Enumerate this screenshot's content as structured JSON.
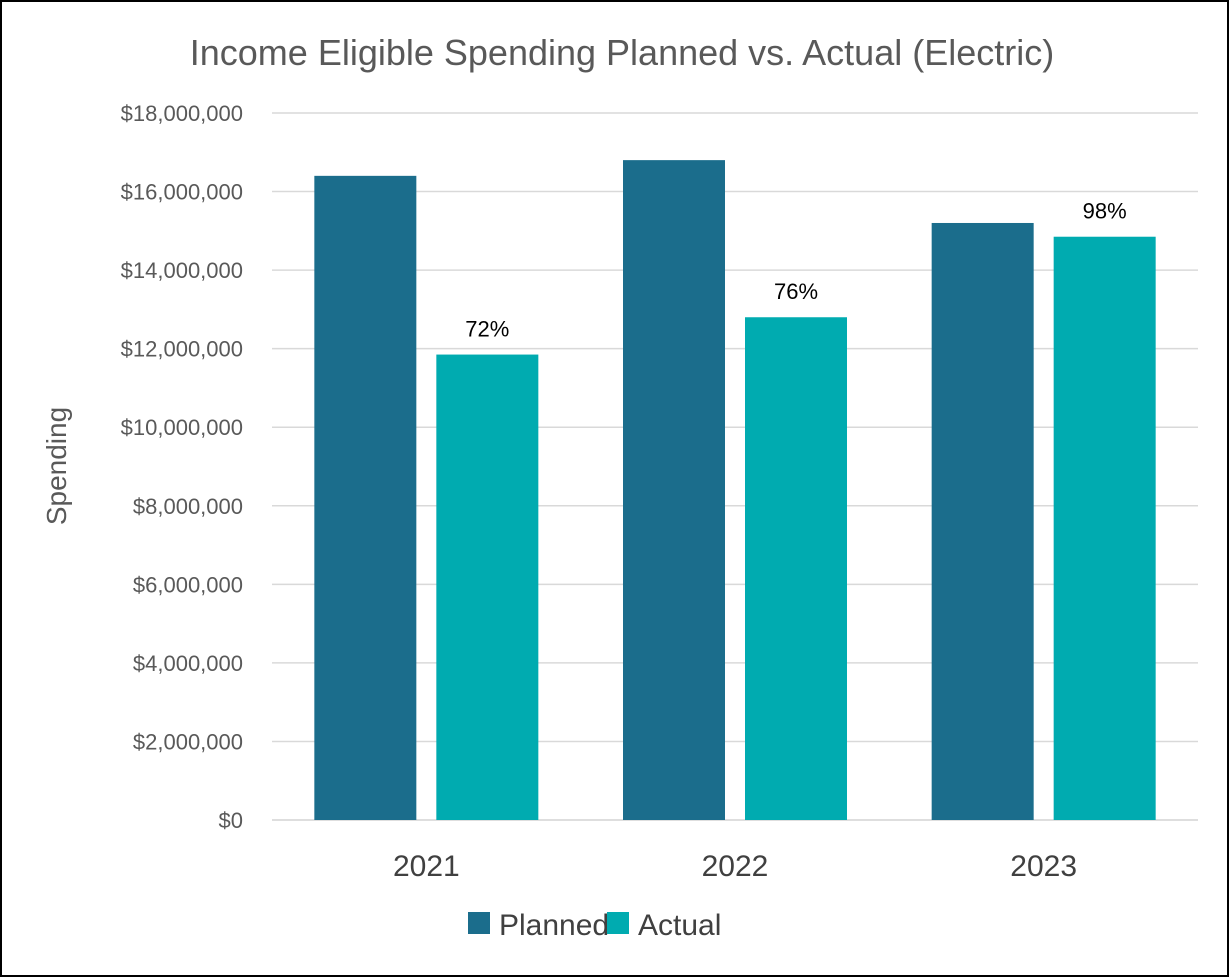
{
  "chart_data": {
    "type": "bar",
    "title": "Income Eligible Spending Planned vs. Actual (Electric)",
    "xlabel": "",
    "ylabel": "Spending",
    "categories": [
      "2021",
      "2022",
      "2023"
    ],
    "ylim": [
      0,
      18000000
    ],
    "y_ticks": [
      0,
      2000000,
      4000000,
      6000000,
      8000000,
      10000000,
      12000000,
      14000000,
      16000000,
      18000000
    ],
    "y_tick_labels": [
      "$0",
      "$2,000,000",
      "$4,000,000",
      "$6,000,000",
      "$8,000,000",
      "$10,000,000",
      "$12,000,000",
      "$14,000,000",
      "$16,000,000",
      "$18,000,000"
    ],
    "grid": true,
    "legend_position": "bottom",
    "series": [
      {
        "name": "Planned",
        "color": "#1B6D8C",
        "values": [
          16400000,
          16800000,
          15200000
        ],
        "data_labels": [
          "",
          "",
          ""
        ]
      },
      {
        "name": "Actual",
        "color": "#00ABB0",
        "values": [
          11850000,
          12800000,
          14850000
        ],
        "data_labels": [
          "72%",
          "76%",
          "98%"
        ]
      }
    ]
  }
}
